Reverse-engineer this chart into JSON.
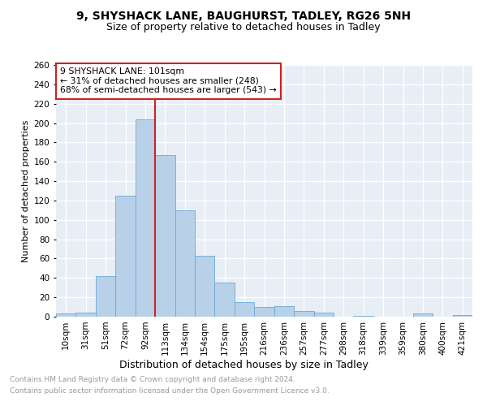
{
  "title1": "9, SHYSHACK LANE, BAUGHURST, TADLEY, RG26 5NH",
  "title2": "Size of property relative to detached houses in Tadley",
  "xlabel": "Distribution of detached houses by size in Tadley",
  "ylabel": "Number of detached properties",
  "categories": [
    "10sqm",
    "31sqm",
    "51sqm",
    "72sqm",
    "92sqm",
    "113sqm",
    "134sqm",
    "154sqm",
    "175sqm",
    "195sqm",
    "216sqm",
    "236sqm",
    "257sqm",
    "277sqm",
    "298sqm",
    "318sqm",
    "339sqm",
    "359sqm",
    "380sqm",
    "400sqm",
    "421sqm"
  ],
  "values": [
    3,
    4,
    42,
    125,
    204,
    167,
    110,
    63,
    35,
    15,
    10,
    11,
    6,
    4,
    0,
    1,
    0,
    0,
    3,
    0,
    2
  ],
  "bar_color": "#b8d0e8",
  "bar_edge_color": "#6aaad4",
  "vline_x_index": 4,
  "vline_color": "#cc2222",
  "annotation_text": "9 SHYSHACK LANE: 101sqm\n← 31% of detached houses are smaller (248)\n68% of semi-detached houses are larger (543) →",
  "annotation_box_color": "#ffffff",
  "annotation_box_edge": "#cc2222",
  "ylim": [
    0,
    260
  ],
  "yticks": [
    0,
    20,
    40,
    60,
    80,
    100,
    120,
    140,
    160,
    180,
    200,
    220,
    240,
    260
  ],
  "footer1": "Contains HM Land Registry data © Crown copyright and database right 2024.",
  "footer2": "Contains public sector information licensed under the Open Government Licence v3.0.",
  "plot_bg_color": "#e8eef5",
  "fig_bg_color": "#ffffff",
  "title1_fontsize": 10,
  "title2_fontsize": 9,
  "ylabel_fontsize": 8,
  "xlabel_fontsize": 9,
  "tick_fontsize": 7.5,
  "footer_fontsize": 6.5,
  "footer_color": "#999999"
}
